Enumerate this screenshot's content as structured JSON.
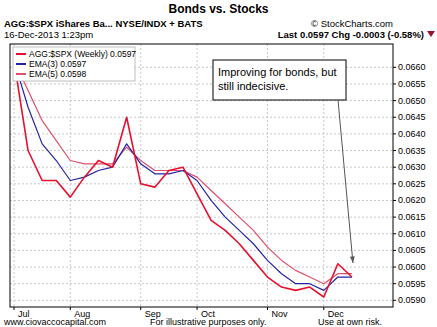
{
  "chart_data": {
    "type": "line",
    "title": "Bonds vs. Stocks",
    "header_left": [
      "AGG:$SPX iShares Ba... NYSE/INDX + BATS",
      "16-Dec-2013 1:23pm"
    ],
    "header_right": [
      "© StockCharts.com",
      "Last 0.0597 Chg -0.0003 (-0.58%)"
    ],
    "footer": [
      "www.ciovaccocapital.com",
      "For illustrative purposes only.",
      "Use at own risk."
    ],
    "annotations": [
      "Improving for bonds, but",
      "still indecisive."
    ],
    "categories": [
      "Jul",
      null,
      null,
      null,
      "Aug",
      null,
      null,
      null,
      null,
      "Sep",
      null,
      null,
      null,
      "Oct",
      null,
      null,
      null,
      null,
      "Nov",
      null,
      null,
      null,
      "Dec",
      null,
      null
    ],
    "series": [
      {
        "name": "AGG:$SPX (Weekly) 0.0597",
        "color": "#e8102e",
        "values": [
          0.0662,
          0.0635,
          0.0626,
          0.0626,
          0.0621,
          0.0627,
          0.0632,
          0.063,
          0.0645,
          0.0625,
          0.0624,
          0.0629,
          0.063,
          0.0622,
          0.0614,
          0.0611,
          0.0607,
          0.0602,
          0.0597,
          0.0594,
          0.0593,
          0.0594,
          0.0591,
          0.0601,
          0.0597
        ]
      },
      {
        "name": "EMA(3) 0.0597",
        "color": "#2424a8",
        "values": [
          0.0662,
          0.0648,
          0.0637,
          0.0632,
          0.0626,
          0.0627,
          0.0629,
          0.063,
          0.0637,
          0.0631,
          0.0628,
          0.0628,
          0.0629,
          0.0626,
          0.062,
          0.0615,
          0.0611,
          0.0607,
          0.0602,
          0.0598,
          0.0595,
          0.0595,
          0.0593,
          0.0597,
          0.0597
        ]
      },
      {
        "name": "EMA(5) 0.0598",
        "color": "#e0506a",
        "values": [
          0.0662,
          0.0653,
          0.0644,
          0.0638,
          0.0632,
          0.0631,
          0.0631,
          0.0631,
          0.0636,
          0.0632,
          0.0629,
          0.0629,
          0.0629,
          0.0627,
          0.0623,
          0.0619,
          0.0615,
          0.0611,
          0.0606,
          0.0602,
          0.0599,
          0.0597,
          0.0595,
          0.0598,
          0.0598
        ]
      }
    ],
    "ylim": [
      0.0588,
      0.0667
    ],
    "yticks": [
      {
        "value": 0.059,
        "label": "0.0590"
      },
      {
        "value": 0.0595,
        "label": "0.0595"
      },
      {
        "value": 0.06,
        "label": "0.0600"
      },
      {
        "value": 0.0605,
        "label": "0.0605"
      },
      {
        "value": 0.061,
        "label": "0.0610"
      },
      {
        "value": 0.0615,
        "label": "0.0615"
      },
      {
        "value": 0.062,
        "label": "0.0620"
      },
      {
        "value": 0.0625,
        "label": "0.0625"
      },
      {
        "value": 0.063,
        "label": "0.0630"
      },
      {
        "value": 0.0635,
        "label": "0.0635"
      },
      {
        "value": 0.064,
        "label": "0.0640"
      },
      {
        "value": 0.0645,
        "label": "0.0645"
      },
      {
        "value": 0.065,
        "label": "0.0650"
      },
      {
        "value": 0.0655,
        "label": "0.0655"
      },
      {
        "value": 0.066,
        "label": "0.0660"
      }
    ],
    "grid": true,
    "legend": "upper left"
  }
}
